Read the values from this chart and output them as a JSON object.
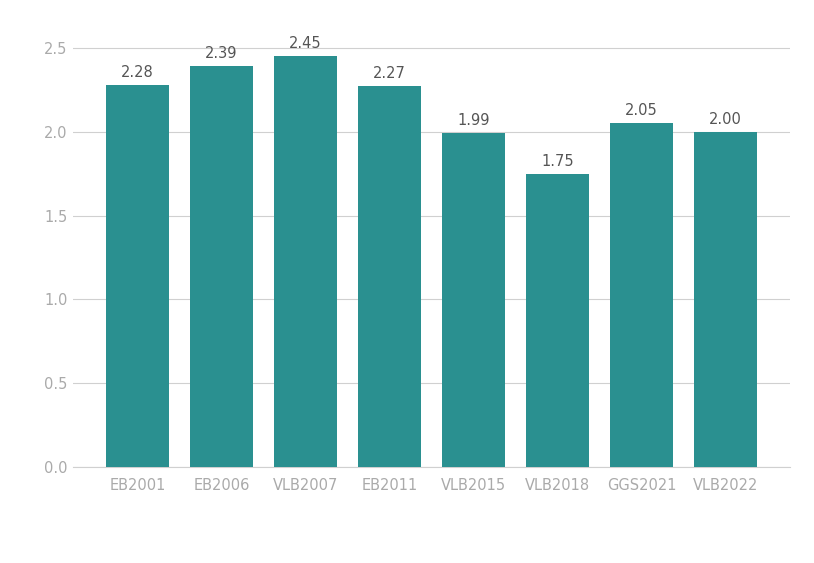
{
  "categories": [
    "EB2001",
    "EB2006",
    "VLB2007",
    "EB2011",
    "VLB2015",
    "VLB2018",
    "GGS2021",
    "VLB2022"
  ],
  "values": [
    2.28,
    2.39,
    2.45,
    2.27,
    1.99,
    1.75,
    2.05,
    2.0
  ],
  "bar_color": "#2a9090",
  "ylim": [
    0,
    2.65
  ],
  "yticks": [
    0.0,
    0.5,
    1.0,
    1.5,
    2.0,
    2.5
  ],
  "background_color": "#ffffff",
  "label_fontsize": 10.5,
  "tick_fontsize": 10.5,
  "bar_width": 0.75,
  "label_color": "#555555",
  "tick_color": "#aaaaaa",
  "grid_color": "#d0d0d0"
}
